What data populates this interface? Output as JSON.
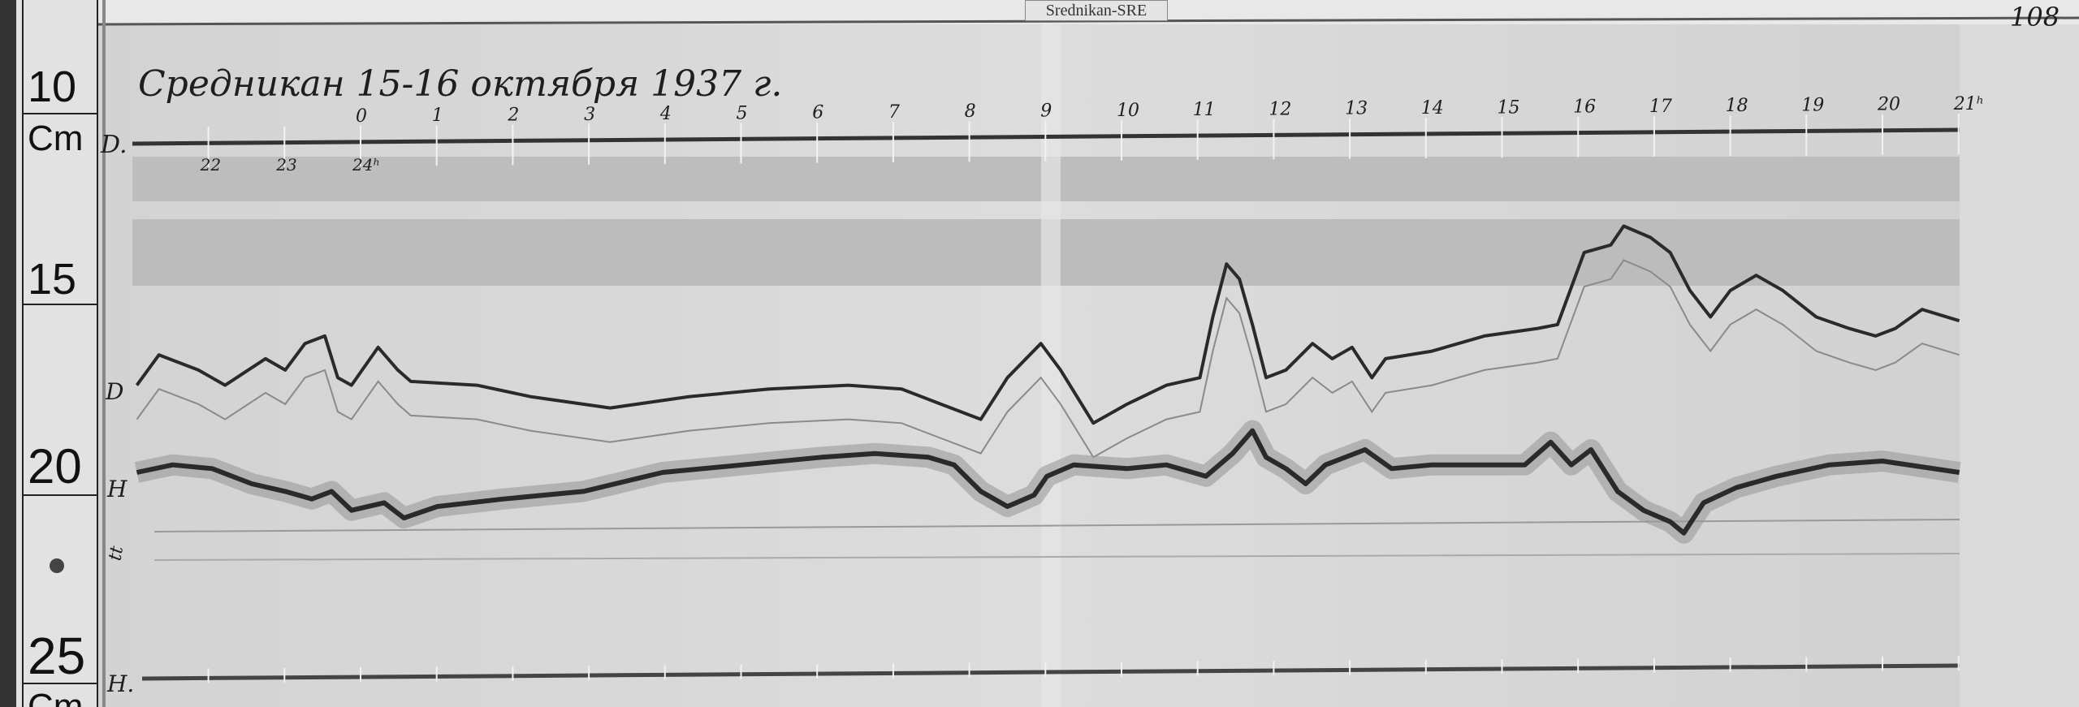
{
  "header_tag": "Srednikan-SRE",
  "page_number": "108",
  "title": "Средникан 15-16 октября 1937 г.",
  "ruler": {
    "labels": [
      "10",
      "Cm",
      "15",
      "20",
      "25",
      "Cm"
    ]
  },
  "trace_labels": {
    "top_baseline": "D.",
    "d": "D",
    "h": "H",
    "t": "tt",
    "bottom_baseline": "H."
  },
  "chart_data": {
    "type": "line",
    "title": "Средникан 15-16 октября 1937 г.",
    "xlabel": "",
    "ylabel": "Cm",
    "x_unit": "hours",
    "top_hour_labels": [
      "0",
      "1",
      "2",
      "3",
      "4",
      "5",
      "6",
      "7",
      "8",
      "9",
      "10",
      "11",
      "12",
      "13",
      "14",
      "15",
      "16",
      "17",
      "18",
      "19",
      "20",
      "21ʰ"
    ],
    "bottom_hour_labels": [
      "22",
      "23",
      "24ʰ"
    ],
    "xlim": [
      -3,
      21
    ],
    "ylim": [
      26,
      9
    ],
    "y_ticks": [
      10,
      15,
      20,
      25
    ],
    "grid": false,
    "colors": {
      "paper": "#d5d5d5",
      "trace": "#2a2a2a",
      "band": "#bdbdbd"
    },
    "series": [
      {
        "name": "D",
        "x": [
          -2.94,
          -2.65,
          -2.13,
          -1.78,
          -1.25,
          -0.99,
          -0.73,
          -0.47,
          -0.3,
          -0.12,
          0.23,
          0.49,
          0.66,
          1.53,
          2.23,
          3.28,
          4.32,
          5.37,
          6.41,
          7.11,
          7.63,
          8.15,
          8.5,
          8.94,
          9.2,
          9.63,
          10.07,
          10.59,
          11.03,
          11.2,
          11.38,
          11.55,
          11.72,
          11.9,
          12.16,
          12.51,
          12.77,
          13.03,
          13.29,
          13.47,
          14.08,
          14.77,
          15.47,
          15.73,
          16.08,
          16.43,
          16.6,
          16.95,
          17.21,
          17.47,
          17.74,
          18.0,
          18.34,
          18.69,
          19.13,
          19.56,
          19.91,
          20.17,
          20.52,
          21.01
        ],
        "y": [
          18.0,
          17.2,
          17.6,
          18.0,
          17.3,
          17.6,
          16.9,
          16.7,
          17.8,
          18.0,
          17.0,
          17.6,
          17.9,
          18.0,
          18.3,
          18.6,
          18.3,
          18.1,
          18.0,
          18.1,
          18.5,
          18.9,
          17.8,
          16.9,
          17.6,
          19.0,
          18.5,
          18.0,
          17.8,
          16.2,
          14.8,
          15.2,
          16.4,
          17.8,
          17.6,
          16.9,
          17.3,
          17.0,
          17.8,
          17.3,
          17.1,
          16.7,
          16.5,
          16.4,
          14.5,
          14.3,
          13.8,
          14.1,
          14.5,
          15.5,
          16.2,
          15.5,
          15.1,
          15.5,
          16.2,
          16.5,
          16.7,
          16.5,
          16.0,
          16.3
        ]
      },
      {
        "name": "H",
        "x": [
          -2.94,
          -2.47,
          -1.95,
          -1.43,
          -0.99,
          -0.64,
          -0.38,
          -0.12,
          0.31,
          0.57,
          1.01,
          1.88,
          2.93,
          3.97,
          5.02,
          6.06,
          6.76,
          7.46,
          7.8,
          8.15,
          8.5,
          8.85,
          9.02,
          9.37,
          10.07,
          10.59,
          11.11,
          11.46,
          11.72,
          11.9,
          12.16,
          12.42,
          12.68,
          13.2,
          13.55,
          14.08,
          14.77,
          15.3,
          15.64,
          15.91,
          16.17,
          16.52,
          16.86,
          17.21,
          17.39,
          17.65,
          18.08,
          18.61,
          19.3,
          20.0,
          21.01
        ],
        "y": [
          20.3,
          20.1,
          20.2,
          20.6,
          20.8,
          21.0,
          20.8,
          21.3,
          21.1,
          21.5,
          21.2,
          21.0,
          20.8,
          20.3,
          20.1,
          19.9,
          19.8,
          19.9,
          20.1,
          20.8,
          21.2,
          20.9,
          20.4,
          20.1,
          20.2,
          20.1,
          20.4,
          19.8,
          19.2,
          19.9,
          20.2,
          20.6,
          20.1,
          19.7,
          20.2,
          20.1,
          20.1,
          20.1,
          19.5,
          20.1,
          19.7,
          20.8,
          21.3,
          21.6,
          21.9,
          21.1,
          20.7,
          20.4,
          20.1,
          20.0,
          20.3
        ]
      }
    ]
  }
}
